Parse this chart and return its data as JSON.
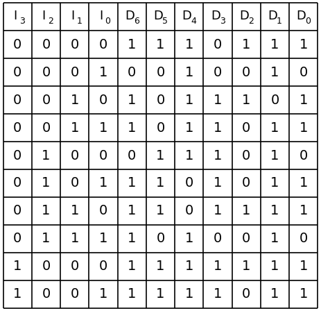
{
  "headers_base": [
    "I",
    "I",
    "I",
    "I",
    "D",
    "D",
    "D",
    "D",
    "D",
    "D",
    "D"
  ],
  "headers_sub": [
    "3",
    "2",
    "1",
    "0",
    "6",
    "5",
    "4",
    "3",
    "2",
    "1",
    "0"
  ],
  "rows": [
    [
      0,
      0,
      0,
      0,
      1,
      1,
      1,
      0,
      1,
      1,
      1
    ],
    [
      0,
      0,
      0,
      1,
      0,
      0,
      1,
      0,
      0,
      1,
      0
    ],
    [
      0,
      0,
      1,
      0,
      1,
      0,
      1,
      1,
      1,
      0,
      1
    ],
    [
      0,
      0,
      1,
      1,
      1,
      0,
      1,
      1,
      0,
      1,
      1
    ],
    [
      0,
      1,
      0,
      0,
      0,
      1,
      1,
      1,
      0,
      1,
      0
    ],
    [
      0,
      1,
      0,
      1,
      1,
      1,
      0,
      1,
      0,
      1,
      1
    ],
    [
      0,
      1,
      1,
      0,
      1,
      1,
      0,
      1,
      1,
      1,
      1
    ],
    [
      0,
      1,
      1,
      1,
      1,
      0,
      1,
      0,
      0,
      1,
      0
    ],
    [
      1,
      0,
      0,
      0,
      1,
      1,
      1,
      1,
      1,
      1,
      1
    ],
    [
      1,
      0,
      0,
      1,
      1,
      1,
      1,
      1,
      0,
      1,
      1
    ]
  ],
  "bg_color": "#ffffff",
  "line_color": "#000000",
  "text_color": "#000000",
  "fig_width": 4.63,
  "fig_height": 4.48,
  "dpi": 100,
  "data_fontsize": 14,
  "header_base_fontsize": 13,
  "header_sub_fontsize": 9
}
